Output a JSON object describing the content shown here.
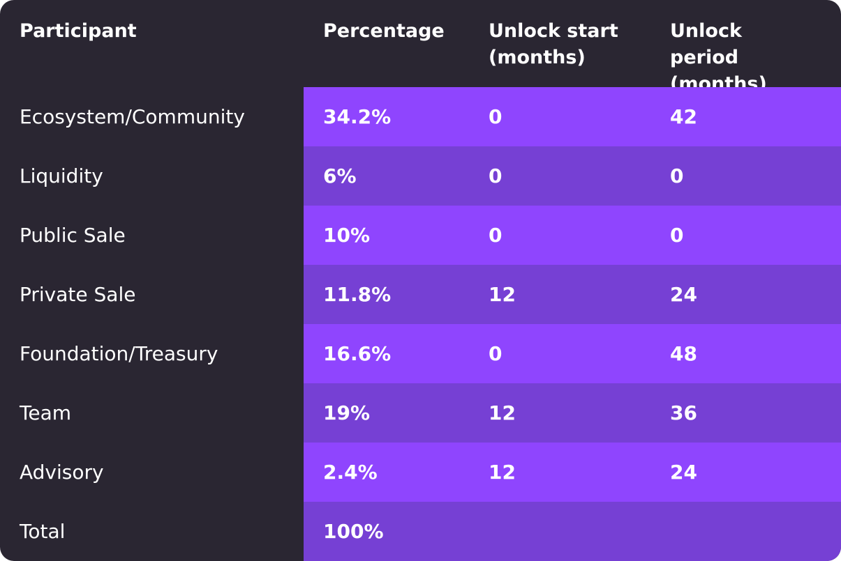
{
  "table": {
    "header": [
      "Participant",
      "Percentage",
      "Unlock start (months)",
      "Unlock period (months)"
    ],
    "rows": [
      [
        "Ecosystem/Community",
        "34.2%",
        "0",
        "42"
      ],
      [
        "Liquidity",
        "6%",
        "0",
        "0"
      ],
      [
        "Public Sale",
        "10%",
        "0",
        "0"
      ],
      [
        "Private Sale",
        "11.8%",
        "12",
        "24"
      ],
      [
        "Foundation/Treasury",
        "16.6%",
        "0",
        "48"
      ],
      [
        "Team",
        "19%",
        "12",
        "36"
      ],
      [
        "Advisory",
        "2.4%",
        "12",
        "24"
      ],
      [
        "Total",
        "100%"
      ]
    ]
  }
}
